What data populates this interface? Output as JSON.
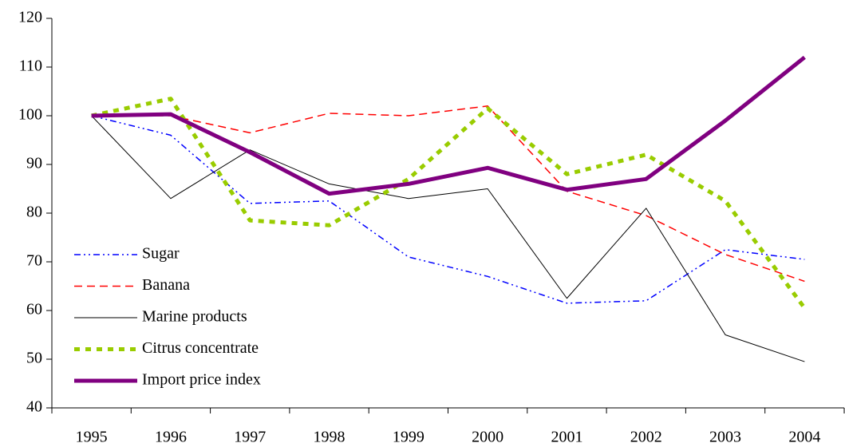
{
  "chart_data": {
    "type": "line",
    "categories": [
      "1995",
      "1996",
      "1997",
      "1998",
      "1999",
      "2000",
      "2001",
      "2002",
      "2003",
      "2004"
    ],
    "series": [
      {
        "name": "Sugar",
        "color": "#0000ff",
        "dash": "8 4 2 4 2 4",
        "width": 1.5,
        "values": [
          100,
          96,
          82,
          82.5,
          71,
          67,
          61.5,
          62,
          72.5,
          70.5
        ]
      },
      {
        "name": "Banana",
        "color": "#ff0000",
        "dash": "10 6",
        "width": 1.5,
        "values": [
          100,
          100,
          96.5,
          100.5,
          100,
          102,
          84.5,
          79.5,
          71.5,
          66
        ]
      },
      {
        "name": "Marine products",
        "color": "#000000",
        "dash": "none",
        "width": 1,
        "values": [
          100,
          83,
          93,
          86,
          83,
          85,
          62.5,
          81,
          55,
          49.5
        ]
      },
      {
        "name": "Citrus concentrate",
        "color": "#99cc00",
        "dash": "7 7",
        "width": 5,
        "values": [
          100,
          103.5,
          78.5,
          77.5,
          87,
          101.5,
          88,
          92,
          82.5,
          60.5
        ]
      },
      {
        "name": "Import price index",
        "color": "#800080",
        "dash": "none",
        "width": 5,
        "values": [
          100,
          100.3,
          92.5,
          84,
          86,
          89.3,
          84.8,
          87,
          99,
          112
        ]
      }
    ],
    "ylim": [
      40,
      120
    ],
    "yticks": [
      40,
      50,
      60,
      70,
      80,
      90,
      100,
      110,
      120
    ],
    "grid": false,
    "legend": "lower left"
  }
}
